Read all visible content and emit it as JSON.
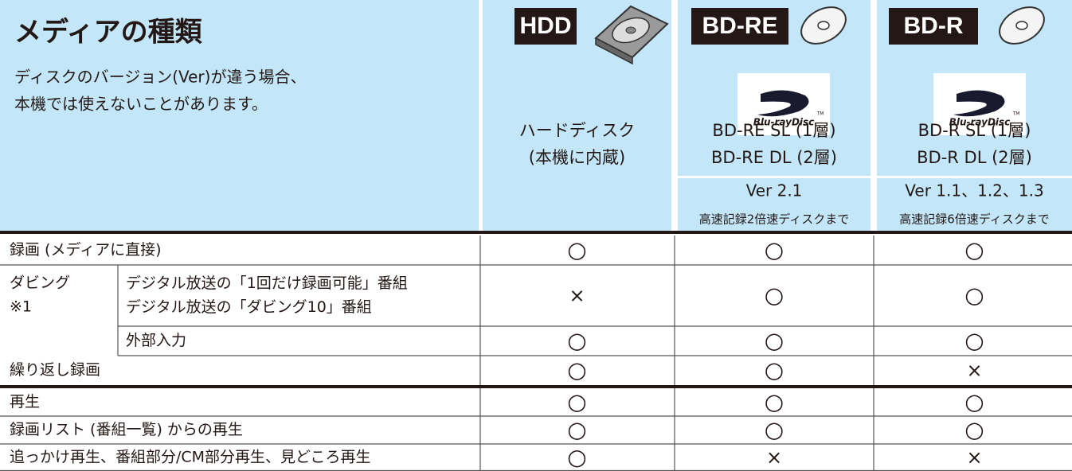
{
  "header": {
    "title": "メディアの種類",
    "note": [
      "ディスクのバージョン(Ver)が違う場合、",
      "本機では使えないことがあります。"
    ]
  },
  "media": [
    {
      "badge": "HDD",
      "name": [
        "ハードディスク",
        "(本機に内蔵)"
      ]
    },
    {
      "badge": "BD-RE",
      "logo": "Blu-rayDisc",
      "logo_tm": "TM",
      "name": [
        "BD-RE SL (1層)",
        "BD-RE DL (2層)"
      ],
      "version": "Ver 2.1",
      "speed": "高速記録2倍速ディスクまで"
    },
    {
      "badge": "BD-R",
      "logo": "Blu-rayDisc",
      "logo_tm": "TM",
      "name": [
        "BD-R SL (1層)",
        "BD-R DL (2層)"
      ],
      "version": "Ver 1.1、1.2、1.3",
      "speed": "高速記録6倍速ディスクまで"
    }
  ],
  "rows": [
    {
      "label": [
        "録画 (メディアに直接)"
      ],
      "marks": [
        "○",
        "○",
        "○"
      ]
    },
    {
      "group": [
        "ダビング",
        "※1"
      ],
      "label": [
        "デジタル放送の「1回だけ録画可能」番組",
        "デジタル放送の「ダビング10」番組"
      ],
      "marks": [
        "×",
        "○",
        "○"
      ]
    },
    {
      "label": [
        "外部入力"
      ],
      "marks": [
        "○",
        "○",
        "○"
      ]
    },
    {
      "label": [
        "繰り返し録画"
      ],
      "marks": [
        "○",
        "○",
        "×"
      ]
    },
    {
      "label": [
        "再生"
      ],
      "marks": [
        "○",
        "○",
        "○"
      ]
    },
    {
      "label": [
        "録画リスト (番組一覧) からの再生"
      ],
      "marks": [
        "○",
        "○",
        "○"
      ]
    },
    {
      "label": [
        "追っかけ再生、番組部分/CM部分再生、見どころ再生"
      ],
      "marks": [
        "○",
        "×",
        "×"
      ]
    }
  ]
}
